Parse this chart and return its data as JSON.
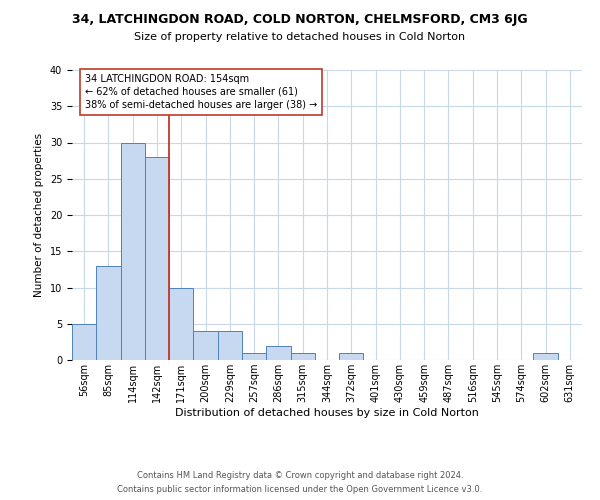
{
  "title_line1": "34, LATCHINGDON ROAD, COLD NORTON, CHELMSFORD, CM3 6JG",
  "title_line2": "Size of property relative to detached houses in Cold Norton",
  "xlabel": "Distribution of detached houses by size in Cold Norton",
  "ylabel": "Number of detached properties",
  "footer_line1": "Contains HM Land Registry data © Crown copyright and database right 2024.",
  "footer_line2": "Contains public sector information licensed under the Open Government Licence v3.0.",
  "bar_labels": [
    "56sqm",
    "85sqm",
    "114sqm",
    "142sqm",
    "171sqm",
    "200sqm",
    "229sqm",
    "257sqm",
    "286sqm",
    "315sqm",
    "344sqm",
    "372sqm",
    "401sqm",
    "430sqm",
    "459sqm",
    "487sqm",
    "516sqm",
    "545sqm",
    "574sqm",
    "602sqm",
    "631sqm"
  ],
  "bar_values": [
    5,
    13,
    30,
    28,
    10,
    4,
    4,
    1,
    2,
    1,
    0,
    1,
    0,
    0,
    0,
    0,
    0,
    0,
    0,
    1,
    0
  ],
  "bar_color": "#c6d9f1",
  "bar_edge_color": "#4f81bd",
  "annotation_title": "34 LATCHINGDON ROAD: 154sqm",
  "annotation_line1": "← 62% of detached houses are smaller (61)",
  "annotation_line2": "38% of semi-detached houses are larger (38) →",
  "ref_line_x": 3.5,
  "ref_line_color": "#c0392b",
  "annotation_box_edge_color": "#c0392b",
  "ylim": [
    0,
    40
  ],
  "background_color": "#ffffff",
  "grid_color": "#c8d8e8",
  "title1_fontsize": 9,
  "title2_fontsize": 8,
  "ylabel_fontsize": 7.5,
  "xlabel_fontsize": 8,
  "tick_fontsize": 7,
  "annotation_fontsize": 7,
  "footer_fontsize": 6
}
